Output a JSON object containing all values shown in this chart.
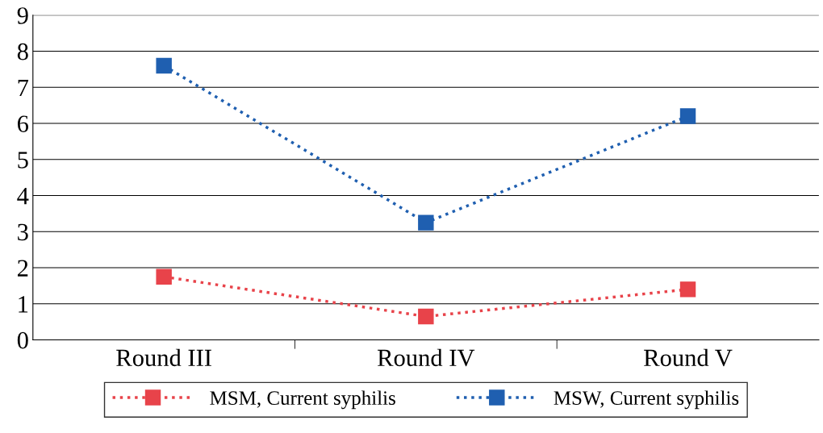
{
  "chart_data": {
    "type": "line",
    "categories": [
      "Round III",
      "Round IV",
      "Round V"
    ],
    "series": [
      {
        "name": "MSM, Current syphilis",
        "color": "#e8434a",
        "values": [
          1.75,
          0.65,
          1.4
        ]
      },
      {
        "name": "MSW, Current syphilis",
        "color": "#1f5fb0",
        "values": [
          7.6,
          3.25,
          6.2
        ]
      }
    ],
    "ylim": [
      0,
      9
    ],
    "yticks": [
      0,
      1,
      2,
      3,
      4,
      5,
      6,
      7,
      8,
      9
    ],
    "grid": "y",
    "legend": "bottom",
    "marker": "square",
    "line_style": "dotted"
  }
}
